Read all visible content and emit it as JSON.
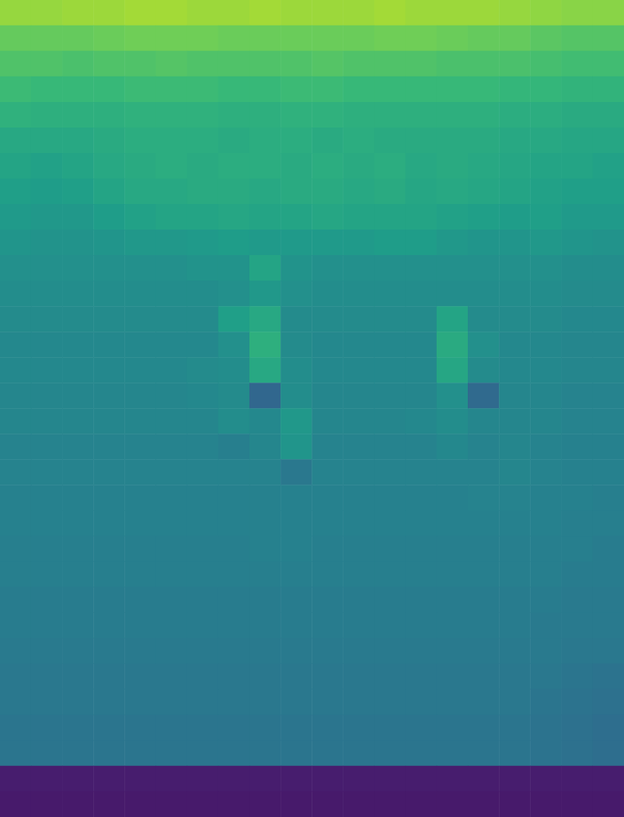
{
  "chart_data": {
    "type": "heatmap",
    "tick_labels": false,
    "grid": false,
    "zlim": [
      0,
      1
    ],
    "values": [
      [
        0.84,
        0.84,
        0.85,
        0.85,
        0.86,
        0.86,
        0.85,
        0.85,
        0.86,
        0.85,
        0.85,
        0.85,
        0.86,
        0.85,
        0.85,
        0.85,
        0.84,
        0.83,
        0.82,
        0.82
      ],
      [
        0.76,
        0.76,
        0.76,
        0.77,
        0.78,
        0.78,
        0.78,
        0.77,
        0.77,
        0.77,
        0.77,
        0.77,
        0.78,
        0.78,
        0.77,
        0.76,
        0.76,
        0.74,
        0.73,
        0.73
      ],
      [
        0.72,
        0.72,
        0.71,
        0.72,
        0.72,
        0.73,
        0.72,
        0.72,
        0.72,
        0.72,
        0.73,
        0.72,
        0.72,
        0.72,
        0.71,
        0.71,
        0.71,
        0.7,
        0.69,
        0.69
      ],
      [
        0.68,
        0.67,
        0.67,
        0.67,
        0.68,
        0.68,
        0.68,
        0.67,
        0.67,
        0.68,
        0.68,
        0.67,
        0.67,
        0.67,
        0.67,
        0.67,
        0.66,
        0.66,
        0.65,
        0.65
      ],
      [
        0.64,
        0.63,
        0.63,
        0.63,
        0.64,
        0.64,
        0.64,
        0.63,
        0.63,
        0.64,
        0.64,
        0.63,
        0.63,
        0.63,
        0.63,
        0.63,
        0.62,
        0.62,
        0.61,
        0.61
      ],
      [
        0.6,
        0.6,
        0.6,
        0.61,
        0.62,
        0.62,
        0.62,
        0.61,
        0.62,
        0.62,
        0.61,
        0.62,
        0.61,
        0.61,
        0.61,
        0.61,
        0.6,
        0.6,
        0.59,
        0.59
      ],
      [
        0.58,
        0.57,
        0.58,
        0.6,
        0.61,
        0.62,
        0.61,
        0.62,
        0.62,
        0.61,
        0.62,
        0.61,
        0.62,
        0.6,
        0.61,
        0.6,
        0.59,
        0.58,
        0.58,
        0.57
      ],
      [
        0.56,
        0.55,
        0.56,
        0.58,
        0.6,
        0.6,
        0.61,
        0.61,
        0.6,
        0.61,
        0.61,
        0.6,
        0.61,
        0.59,
        0.6,
        0.59,
        0.58,
        0.57,
        0.56,
        0.56
      ],
      [
        0.54,
        0.53,
        0.53,
        0.55,
        0.57,
        0.58,
        0.58,
        0.59,
        0.58,
        0.58,
        0.59,
        0.58,
        0.58,
        0.58,
        0.57,
        0.56,
        0.55,
        0.56,
        0.54,
        0.54
      ],
      [
        0.52,
        0.51,
        0.51,
        0.52,
        0.53,
        0.53,
        0.54,
        0.55,
        0.54,
        0.54,
        0.54,
        0.54,
        0.55,
        0.55,
        0.53,
        0.52,
        0.52,
        0.53,
        0.52,
        0.51
      ],
      [
        0.5,
        0.5,
        0.5,
        0.5,
        0.5,
        0.5,
        0.51,
        0.51,
        0.58,
        0.51,
        0.5,
        0.5,
        0.5,
        0.5,
        0.5,
        0.5,
        0.5,
        0.5,
        0.49,
        0.49
      ],
      [
        0.49,
        0.49,
        0.49,
        0.49,
        0.49,
        0.49,
        0.49,
        0.5,
        0.53,
        0.5,
        0.49,
        0.49,
        0.49,
        0.49,
        0.49,
        0.49,
        0.49,
        0.49,
        0.48,
        0.48
      ],
      [
        0.48,
        0.48,
        0.48,
        0.48,
        0.48,
        0.48,
        0.48,
        0.56,
        0.6,
        0.48,
        0.48,
        0.48,
        0.48,
        0.48,
        0.58,
        0.48,
        0.48,
        0.48,
        0.47,
        0.47
      ],
      [
        0.47,
        0.47,
        0.47,
        0.47,
        0.47,
        0.47,
        0.47,
        0.5,
        0.63,
        0.48,
        0.47,
        0.47,
        0.47,
        0.47,
        0.61,
        0.5,
        0.47,
        0.47,
        0.46,
        0.46
      ],
      [
        0.47,
        0.47,
        0.47,
        0.47,
        0.47,
        0.47,
        0.48,
        0.49,
        0.6,
        0.49,
        0.47,
        0.47,
        0.47,
        0.47,
        0.59,
        0.48,
        0.47,
        0.47,
        0.46,
        0.46
      ],
      [
        0.46,
        0.46,
        0.46,
        0.46,
        0.46,
        0.46,
        0.47,
        0.48,
        0.33,
        0.49,
        0.46,
        0.46,
        0.46,
        0.46,
        0.5,
        0.34,
        0.46,
        0.46,
        0.45,
        0.45
      ],
      [
        0.46,
        0.46,
        0.46,
        0.46,
        0.46,
        0.46,
        0.46,
        0.49,
        0.47,
        0.53,
        0.46,
        0.46,
        0.46,
        0.47,
        0.49,
        0.46,
        0.46,
        0.46,
        0.45,
        0.45
      ],
      [
        0.45,
        0.45,
        0.45,
        0.45,
        0.45,
        0.45,
        0.45,
        0.43,
        0.46,
        0.52,
        0.45,
        0.45,
        0.45,
        0.45,
        0.47,
        0.45,
        0.46,
        0.45,
        0.44,
        0.44
      ],
      [
        0.45,
        0.45,
        0.45,
        0.45,
        0.45,
        0.45,
        0.45,
        0.45,
        0.45,
        0.4,
        0.45,
        0.45,
        0.45,
        0.45,
        0.45,
        0.45,
        0.46,
        0.45,
        0.44,
        0.44
      ],
      [
        0.44,
        0.44,
        0.44,
        0.44,
        0.44,
        0.44,
        0.44,
        0.44,
        0.44,
        0.44,
        0.44,
        0.44,
        0.44,
        0.44,
        0.44,
        0.45,
        0.45,
        0.44,
        0.44,
        0.43
      ],
      [
        0.44,
        0.44,
        0.44,
        0.44,
        0.44,
        0.44,
        0.44,
        0.44,
        0.44,
        0.44,
        0.44,
        0.44,
        0.44,
        0.44,
        0.44,
        0.44,
        0.44,
        0.44,
        0.43,
        0.43
      ],
      [
        0.43,
        0.43,
        0.43,
        0.43,
        0.43,
        0.43,
        0.43,
        0.43,
        0.44,
        0.44,
        0.43,
        0.43,
        0.43,
        0.43,
        0.43,
        0.43,
        0.43,
        0.43,
        0.43,
        0.42
      ],
      [
        0.43,
        0.43,
        0.43,
        0.43,
        0.43,
        0.43,
        0.43,
        0.43,
        0.43,
        0.43,
        0.43,
        0.43,
        0.43,
        0.43,
        0.43,
        0.43,
        0.43,
        0.43,
        0.42,
        0.42
      ],
      [
        0.42,
        0.42,
        0.42,
        0.42,
        0.42,
        0.42,
        0.42,
        0.42,
        0.42,
        0.42,
        0.42,
        0.42,
        0.42,
        0.42,
        0.42,
        0.42,
        0.42,
        0.42,
        0.41,
        0.41
      ],
      [
        0.42,
        0.42,
        0.42,
        0.42,
        0.42,
        0.42,
        0.42,
        0.42,
        0.42,
        0.42,
        0.42,
        0.42,
        0.42,
        0.42,
        0.42,
        0.42,
        0.42,
        0.41,
        0.41,
        0.41
      ],
      [
        0.41,
        0.41,
        0.41,
        0.41,
        0.41,
        0.41,
        0.41,
        0.41,
        0.41,
        0.41,
        0.41,
        0.41,
        0.41,
        0.41,
        0.41,
        0.41,
        0.41,
        0.41,
        0.4,
        0.4
      ],
      [
        0.4,
        0.4,
        0.4,
        0.4,
        0.4,
        0.4,
        0.4,
        0.4,
        0.4,
        0.4,
        0.4,
        0.4,
        0.4,
        0.4,
        0.4,
        0.4,
        0.4,
        0.4,
        0.39,
        0.38
      ],
      [
        0.4,
        0.4,
        0.4,
        0.4,
        0.4,
        0.4,
        0.4,
        0.4,
        0.4,
        0.4,
        0.4,
        0.4,
        0.4,
        0.4,
        0.4,
        0.4,
        0.4,
        0.39,
        0.38,
        0.37
      ],
      [
        0.39,
        0.39,
        0.39,
        0.39,
        0.39,
        0.39,
        0.39,
        0.39,
        0.39,
        0.39,
        0.39,
        0.39,
        0.39,
        0.39,
        0.39,
        0.39,
        0.39,
        0.38,
        0.37,
        0.36
      ],
      [
        0.39,
        0.39,
        0.39,
        0.39,
        0.39,
        0.39,
        0.39,
        0.39,
        0.39,
        0.39,
        0.39,
        0.39,
        0.39,
        0.39,
        0.39,
        0.39,
        0.39,
        0.38,
        0.37,
        0.36
      ],
      [
        0.08,
        0.08,
        0.08,
        0.08,
        0.08,
        0.08,
        0.08,
        0.08,
        0.08,
        0.08,
        0.08,
        0.08,
        0.08,
        0.08,
        0.08,
        0.08,
        0.08,
        0.08,
        0.08,
        0.08
      ],
      [
        0.07,
        0.07,
        0.07,
        0.07,
        0.07,
        0.07,
        0.07,
        0.07,
        0.07,
        0.07,
        0.07,
        0.07,
        0.07,
        0.07,
        0.07,
        0.07,
        0.07,
        0.07,
        0.07,
        0.07
      ]
    ]
  }
}
